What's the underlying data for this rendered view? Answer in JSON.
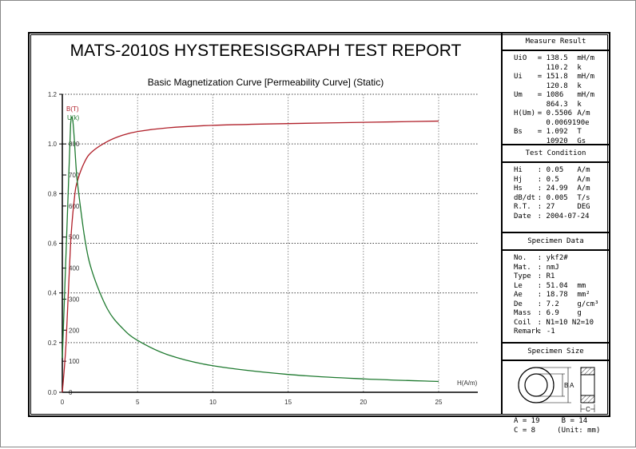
{
  "report": {
    "title": "MATS-2010S HYSTERESISGRAPH TEST REPORT",
    "subtitle": "Basic Magnetization Curve [Permeability Curve] (Static)"
  },
  "chart_data": {
    "type": "line",
    "title": "Basic Magnetization Curve [Permeability Curve] (Static)",
    "xlabel": "H(A/m)",
    "xlim": [
      0,
      25
    ],
    "x_ticks": [
      "0",
      "5",
      "10",
      "15",
      "20",
      "25"
    ],
    "ylim": [
      0,
      1.2
    ],
    "y_ticks": [
      "0.0",
      "0.2",
      "0.4",
      "0.6",
      "0.8",
      "1.0",
      "1.2"
    ],
    "y2_ticks": [
      "0",
      "100",
      "200",
      "300",
      "400",
      "500",
      "600",
      "700",
      "800"
    ],
    "grid": true,
    "series": [
      {
        "name": "B(T)",
        "axis": "left",
        "color": "#b0202a",
        "points": [
          [
            0,
            0
          ],
          [
            0.25,
            0.2
          ],
          [
            0.55,
            0.6
          ],
          [
            0.8,
            0.78
          ],
          [
            1,
            0.85
          ],
          [
            1.5,
            0.93
          ],
          [
            2,
            0.97
          ],
          [
            3,
            1.01
          ],
          [
            4,
            1.035
          ],
          [
            5,
            1.05
          ],
          [
            7,
            1.065
          ],
          [
            10,
            1.075
          ],
          [
            15,
            1.082
          ],
          [
            20,
            1.087
          ],
          [
            25,
            1.092
          ]
        ]
      },
      {
        "name": "U(k)",
        "axis": "right-inner",
        "color": "#1f7a30",
        "points": [
          [
            0,
            110
          ],
          [
            0.55,
            864
          ],
          [
            1,
            676
          ],
          [
            1.5,
            493
          ],
          [
            2,
            386
          ],
          [
            3,
            268
          ],
          [
            4,
            206
          ],
          [
            5,
            167
          ],
          [
            7,
            121
          ],
          [
            10,
            85.5
          ],
          [
            15,
            57.4
          ],
          [
            20,
            43.2
          ],
          [
            25,
            34.8
          ]
        ]
      }
    ]
  },
  "panel": {
    "measure": {
      "header": "Measure Result",
      "rows": [
        [
          "UiO",
          "= 138.5",
          "mH/m"
        ],
        [
          "",
          "  110.2",
          "k"
        ],
        [
          "Ui",
          "= 151.8",
          "mH/m"
        ],
        [
          "",
          "  120.8",
          "k"
        ],
        [
          "Um",
          "= 1086",
          "mH/m"
        ],
        [
          "",
          "  864.3",
          "k"
        ],
        [
          "H(Um)",
          "= 0.5506",
          "A/m"
        ],
        [
          "",
          "  0.0069190e",
          ""
        ],
        [
          "Bs",
          "= 1.092",
          "T"
        ],
        [
          "",
          "  10920",
          "Gs"
        ]
      ]
    },
    "condition": {
      "header": "Test Condition",
      "rows": [
        [
          "Hi",
          ": 0.05",
          "A/m"
        ],
        [
          "Hj",
          ": 0.5",
          "A/m"
        ],
        [
          "Hs",
          ": 24.99",
          "A/m"
        ],
        [
          "dB/dt",
          ": 0.005",
          "T/s"
        ],
        [
          "R.T.",
          ": 27",
          "DEG"
        ],
        [
          "Date",
          ": 2004-07-24",
          ""
        ]
      ]
    },
    "specimen": {
      "header": "Specimen Data",
      "rows": [
        [
          "No.",
          ": ykf2#",
          ""
        ],
        [
          "Mat.",
          ": nmJ",
          ""
        ],
        [
          "Type",
          ": R1",
          ""
        ],
        [
          "Le",
          ": 51.04",
          "mm"
        ],
        [
          "Ae",
          ": 18.78",
          "mm²"
        ],
        [
          "De",
          ": 7.2",
          "g/cm³"
        ],
        [
          "Mass",
          ": 6.9",
          "g"
        ],
        [
          "Coil",
          ": N1=10 N2=10",
          ""
        ],
        [
          "Remark",
          ": -1",
          ""
        ]
      ]
    },
    "size": {
      "header": "Specimen Size",
      "label_a": "A",
      "label_b": "B",
      "label_c": "C",
      "line1": "A = 19     B = 14",
      "line2": "C = 8     (Unit: mm)"
    }
  }
}
